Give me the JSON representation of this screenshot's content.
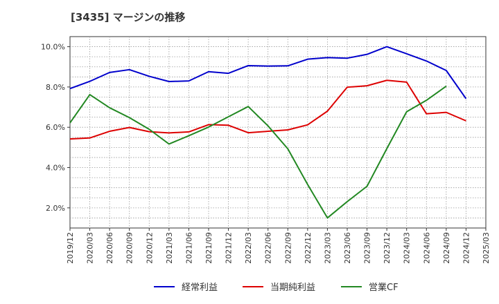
{
  "chart_data": {
    "type": "line",
    "title": "[3435]  マージンの推移",
    "xlabel": "",
    "ylabel": "",
    "x": [
      "2019/12",
      "2020/03",
      "2020/06",
      "2020/09",
      "2020/12",
      "2021/03",
      "2021/06",
      "2021/09",
      "2021/12",
      "2022/03",
      "2022/06",
      "2022/09",
      "2022/12",
      "2023/03",
      "2023/06",
      "2023/09",
      "2023/12",
      "2024/03",
      "2024/06",
      "2024/09",
      "2024/12",
      "2025/03"
    ],
    "ylim": [
      1.0,
      10.5
    ],
    "yticks": [
      2.0,
      4.0,
      6.0,
      8.0,
      10.0
    ],
    "ytick_labels": [
      "2.0%",
      "4.0%",
      "6.0%",
      "8.0%",
      "10.0%"
    ],
    "grid": true,
    "legend_position": "bottom",
    "series": [
      {
        "name": "経常利益",
        "color": "#0000cc",
        "values": [
          7.92,
          8.28,
          8.72,
          8.86,
          8.53,
          8.27,
          8.3,
          8.76,
          8.68,
          9.06,
          9.04,
          9.05,
          9.38,
          9.46,
          9.43,
          9.62,
          10.0,
          9.65,
          9.29,
          8.82,
          7.42,
          null
        ]
      },
      {
        "name": "当期純利益",
        "color": "#dd0000",
        "values": [
          5.42,
          5.47,
          5.8,
          5.99,
          5.78,
          5.72,
          5.77,
          6.13,
          6.1,
          5.73,
          5.8,
          5.87,
          6.12,
          6.8,
          7.99,
          8.06,
          8.33,
          8.24,
          6.67,
          6.74,
          6.32,
          null
        ]
      },
      {
        "name": "営業CF",
        "color": "#228822",
        "values": [
          6.22,
          7.62,
          6.97,
          6.48,
          5.9,
          5.17,
          5.58,
          6.01,
          6.52,
          7.03,
          6.07,
          4.93,
          3.16,
          1.5,
          2.31,
          3.07,
          4.94,
          6.77,
          7.34,
          8.04,
          null,
          null
        ]
      }
    ]
  }
}
